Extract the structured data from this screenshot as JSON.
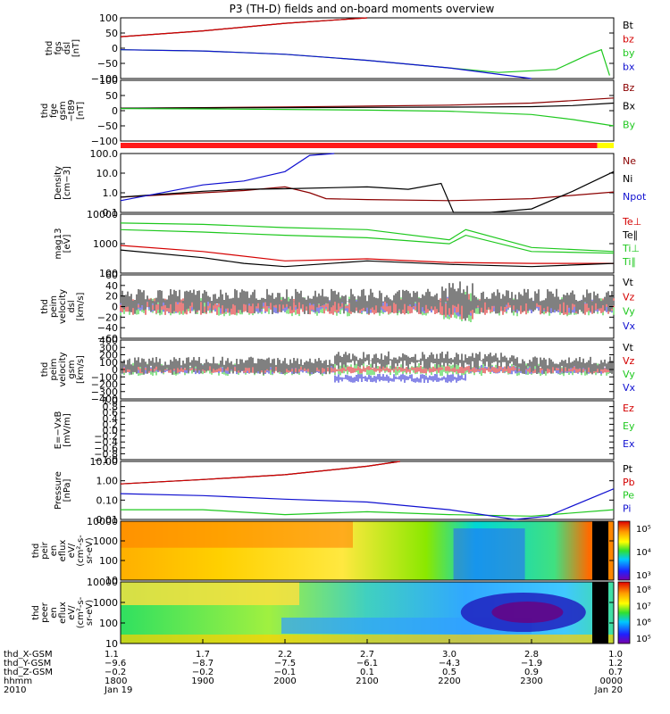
{
  "title": "P3 (TH-D) fields and on-board moments overview",
  "colors": {
    "black": "#000000",
    "red": "#d40000",
    "green": "#1ec81e",
    "blue": "#1010d0",
    "darkred": "#8b0000",
    "yellow": "#ffff00"
  },
  "panels": [
    {
      "id": "fgs-dsl",
      "ylabel": [
        "thd",
        "fgs",
        "dsl",
        "[nT]"
      ],
      "yticks": [
        "100",
        "50",
        "0",
        "−50",
        "−100"
      ],
      "legend": [
        {
          "text": "Bt",
          "color": "black"
        },
        {
          "text": "bz",
          "color": "red"
        },
        {
          "text": "by",
          "color": "green"
        },
        {
          "text": "bx",
          "color": "blue"
        }
      ]
    },
    {
      "id": "fge-gsm",
      "ylabel": [
        "thd",
        "fge",
        "gsm",
        "−t89",
        "[nT]"
      ],
      "yticks": [
        "100",
        "50",
        "0",
        "−50",
        "−100"
      ],
      "legend": [
        {
          "text": "Bz",
          "color": "darkred"
        },
        {
          "text": "Bx",
          "color": "black"
        },
        {
          "text": "By",
          "color": "green"
        }
      ]
    },
    {
      "id": "density",
      "ylabel": [
        "Density",
        "[cm−3]"
      ],
      "yticks": [
        "100.0",
        "10.0",
        "1.0",
        "0.1"
      ],
      "legend": [
        {
          "text": "Ne",
          "color": "darkred"
        },
        {
          "text": "Ni",
          "color": "black"
        },
        {
          "text": "Npot",
          "color": "blue"
        }
      ]
    },
    {
      "id": "temperature",
      "ylabel": [
        "mag13",
        "[eV]"
      ],
      "yticks": [
        "10000",
        "1000",
        "100"
      ],
      "legend": [
        {
          "text": "Te⊥",
          "color": "red"
        },
        {
          "text": "Te∥",
          "color": "black"
        },
        {
          "text": "Ti⊥",
          "color": "green"
        },
        {
          "text": "Ti∥",
          "color": "green"
        }
      ]
    },
    {
      "id": "peim-velocity-dsl",
      "ylabel": [
        "thd",
        "peim",
        "velocity",
        "dsl",
        "[km/s]"
      ],
      "yticks": [
        "60",
        "40",
        "20",
        "0",
        "−20",
        "−40",
        "−60"
      ],
      "legend": [
        {
          "text": "Vt",
          "color": "black"
        },
        {
          "text": "Vz",
          "color": "red"
        },
        {
          "text": "Vy",
          "color": "green"
        },
        {
          "text": "Vx",
          "color": "blue"
        }
      ]
    },
    {
      "id": "peim-velocity-gsm",
      "ylabel": [
        "thd",
        "peim",
        "velocity",
        "gsm",
        "[km/s]"
      ],
      "yticks": [
        "400",
        "300",
        "200",
        "100",
        "0",
        "−100",
        "−200",
        "−300",
        "−400"
      ],
      "legend": [
        {
          "text": "Vt",
          "color": "black"
        },
        {
          "text": "Vz",
          "color": "red"
        },
        {
          "text": "Vy",
          "color": "green"
        },
        {
          "text": "Vx",
          "color": "blue"
        }
      ]
    },
    {
      "id": "efield",
      "ylabel": [
        "E=−VxB",
        "[mV/m]"
      ],
      "yticks": [
        "1.0",
        "0.8",
        "0.6",
        "0.4",
        "0.2",
        "0.0",
        "−0.2",
        "−0.4",
        "−0.6",
        "−0.8",
        "−1.0"
      ],
      "legend": [
        {
          "text": "Ez",
          "color": "red"
        },
        {
          "text": "Ey",
          "color": "green"
        },
        {
          "text": "Ex",
          "color": "blue"
        }
      ]
    },
    {
      "id": "pressure",
      "ylabel": [
        "Pressure",
        "[nPa]"
      ],
      "yticks": [
        "10.00",
        "1.00",
        "0.10",
        "0.01"
      ],
      "legend": [
        {
          "text": "Pt",
          "color": "black"
        },
        {
          "text": "Pb",
          "color": "red"
        },
        {
          "text": "Pe",
          "color": "green"
        },
        {
          "text": "Pi",
          "color": "blue"
        }
      ]
    },
    {
      "id": "peir-eflux",
      "ylabel": [
        "thd",
        "peir",
        "en",
        "eflux",
        "eV/",
        "(cm²-s-",
        "sr-eV)"
      ],
      "yticks": [
        "10000",
        "1000",
        "100",
        "10"
      ],
      "colorbar": [
        "10⁵",
        "10⁴",
        "10³"
      ]
    },
    {
      "id": "peer-eflux",
      "ylabel": [
        "thd",
        "peer",
        "en",
        "eflux",
        "eV/",
        "(cm²-s-",
        "sr-eV)"
      ],
      "yticks": [
        "10000",
        "1000",
        "100",
        "10"
      ],
      "colorbar": [
        "10⁸",
        "10⁷",
        "10⁶",
        "10⁵"
      ]
    }
  ],
  "xaxis": {
    "rows": [
      {
        "label": "thd_X-GSM",
        "values": [
          "1.1",
          "1.7",
          "2.2",
          "2.7",
          "3.0",
          "2.8",
          "1.0"
        ]
      },
      {
        "label": "thd_Y-GSM",
        "values": [
          "−9.6",
          "−8.7",
          "−7.5",
          "−6.1",
          "−4.3",
          "−1.9",
          "1.2"
        ]
      },
      {
        "label": "thd_Z-GSM",
        "values": [
          "−0.2",
          "−0.2",
          "−0.1",
          "0.1",
          "0.5",
          "0.9",
          "0.7"
        ]
      },
      {
        "label": "hhmm",
        "values": [
          "1800",
          "1900",
          "2000",
          "2100",
          "2200",
          "2300",
          "0000"
        ]
      },
      {
        "label": "2010",
        "values": [
          "Jan 19",
          "",
          "",
          "",
          "",
          "",
          "Jan 20"
        ]
      }
    ]
  },
  "chart_data": {
    "type": "line",
    "title": "P3 (TH-D) fields and on-board moments overview",
    "x": [
      "1800",
      "1900",
      "2000",
      "2100",
      "2200",
      "2300",
      "0000"
    ],
    "xlabel": "hhmm",
    "panels": [
      {
        "name": "thd fgs dsl [nT]",
        "ylim": [
          -100,
          100
        ],
        "series": [
          {
            "name": "Bt",
            "points": [
              [
                0,
                38
              ],
              [
                1,
                57
              ],
              [
                2,
                82
              ],
              [
                3,
                110
              ]
            ]
          },
          {
            "name": "bz",
            "points": [
              [
                0,
                38
              ],
              [
                1,
                57
              ],
              [
                2,
                82
              ],
              [
                3,
                110
              ]
            ]
          },
          {
            "name": "by",
            "points": [
              [
                0,
                -5
              ],
              [
                1,
                -9
              ],
              [
                2,
                -20
              ],
              [
                3,
                -40
              ],
              [
                4,
                -65
              ],
              [
                4.6,
                -80
              ],
              [
                5.3,
                -70
              ],
              [
                5.7,
                -20
              ],
              [
                5.85,
                -5
              ],
              [
                5.95,
                -90
              ]
            ]
          },
          {
            "name": "bx",
            "points": [
              [
                0,
                -5
              ],
              [
                1,
                -9
              ],
              [
                2,
                -20
              ],
              [
                3,
                -40
              ],
              [
                4,
                -65
              ],
              [
                5,
                -105
              ]
            ]
          }
        ]
      },
      {
        "name": "thd fge gsm-t89 [nT]",
        "ylim": [
          -130,
          110
        ],
        "series": [
          {
            "name": "Bz",
            "points": [
              [
                0,
                0
              ],
              [
                1,
                2
              ],
              [
                2,
                5
              ],
              [
                3,
                8
              ],
              [
                4,
                12
              ],
              [
                5,
                20
              ],
              [
                5.5,
                30
              ],
              [
                6,
                40
              ]
            ]
          },
          {
            "name": "Bx",
            "points": [
              [
                0,
                0
              ],
              [
                1,
                1
              ],
              [
                2,
                2
              ],
              [
                3,
                3
              ],
              [
                4,
                4
              ],
              [
                5,
                6
              ],
              [
                5.5,
                10
              ],
              [
                6,
                20
              ]
            ]
          },
          {
            "name": "By",
            "points": [
              [
                0,
                -2
              ],
              [
                1,
                -3
              ],
              [
                2,
                -5
              ],
              [
                3,
                -8
              ],
              [
                4,
                -12
              ],
              [
                5,
                -25
              ],
              [
                5.5,
                -45
              ],
              [
                6,
                -70
              ]
            ]
          }
        ]
      },
      {
        "name": "Density [cm-3]",
        "ylim": [
          0.1,
          100
        ],
        "scale": "log",
        "series": [
          {
            "name": "Ne",
            "points": [
              [
                0,
                0.6
              ],
              [
                1,
                1.0
              ],
              [
                1.5,
                1.3
              ],
              [
                2,
                2.0
              ],
              [
                2.3,
                1.0
              ],
              [
                2.5,
                0.5
              ],
              [
                3,
                0.45
              ],
              [
                4,
                0.4
              ],
              [
                5,
                0.5
              ],
              [
                6,
                1.1
              ]
            ]
          },
          {
            "name": "Ni",
            "points": [
              [
                0,
                0.6
              ],
              [
                1,
                1.2
              ],
              [
                1.5,
                1.5
              ],
              [
                2,
                1.6
              ],
              [
                3,
                2.0
              ],
              [
                3.5,
                1.5
              ],
              [
                3.9,
                3.0
              ],
              [
                4.05,
                0.1
              ],
              [
                4.5,
                0.08
              ],
              [
                5,
                0.15
              ],
              [
                5.5,
                1.2
              ],
              [
                6,
                12
              ]
            ]
          },
          {
            "name": "Npot",
            "points": [
              [
                0,
                0.4
              ],
              [
                1,
                2.5
              ],
              [
                1.5,
                4.0
              ],
              [
                2,
                12
              ],
              [
                2.3,
                80
              ],
              [
                2.6,
                150
              ]
            ]
          }
        ]
      },
      {
        "name": "mag13 [eV]",
        "ylim": [
          50,
          10000
        ],
        "scale": "log",
        "series": [
          {
            "name": "Te⊥",
            "points": [
              [
                0,
                600
              ],
              [
                1,
                350
              ],
              [
                2,
                150
              ],
              [
                3,
                180
              ],
              [
                4,
                130
              ],
              [
                5,
                120
              ],
              [
                6,
                120
              ]
            ]
          },
          {
            "name": "Te∥",
            "points": [
              [
                0,
                400
              ],
              [
                1,
                200
              ],
              [
                1.5,
                120
              ],
              [
                2,
                90
              ],
              [
                3,
                150
              ],
              [
                4,
                110
              ],
              [
                5,
                90
              ],
              [
                6,
                120
              ]
            ]
          },
          {
            "name": "Ti⊥",
            "points": [
              [
                0,
                4500
              ],
              [
                1,
                4000
              ],
              [
                2,
                3000
              ],
              [
                3,
                2500
              ],
              [
                4,
                1000
              ],
              [
                4.2,
                2500
              ],
              [
                5,
                500
              ],
              [
                6,
                350
              ]
            ]
          },
          {
            "name": "Ti∥",
            "points": [
              [
                0,
                2500
              ],
              [
                1,
                2000
              ],
              [
                2,
                1500
              ],
              [
                3,
                1200
              ],
              [
                4,
                700
              ],
              [
                4.2,
                1500
              ],
              [
                5,
                350
              ],
              [
                6,
                300
              ]
            ]
          }
        ]
      },
      {
        "name": "thd peim velocity dsl [km/s]",
        "ylim": [
          -60,
          60
        ]
      },
      {
        "name": "thd peim velocity gsm [km/s]",
        "ylim": [
          -400,
          400
        ]
      },
      {
        "name": "E=-VxB [mV/m]",
        "ylim": [
          -1,
          1
        ]
      },
      {
        "name": "Pressure [nPa]",
        "ylim": [
          0.005,
          20
        ],
        "scale": "log",
        "series": [
          {
            "name": "Pt",
            "points": [
              [
                0,
                0.8
              ],
              [
                1,
                1.5
              ],
              [
                2,
                3.0
              ],
              [
                3,
                10
              ],
              [
                3.4,
                25
              ]
            ]
          },
          {
            "name": "Pb",
            "points": [
              [
                0,
                0.8
              ],
              [
                1,
                1.5
              ],
              [
                2,
                3.0
              ],
              [
                3,
                10
              ],
              [
                3.4,
                25
              ]
            ]
          },
          {
            "name": "Pe",
            "points": [
              [
                0,
                0.02
              ],
              [
                1,
                0.02
              ],
              [
                2,
                0.01
              ],
              [
                3,
                0.015
              ],
              [
                4,
                0.01
              ],
              [
                5,
                0.008
              ],
              [
                6,
                0.02
              ]
            ]
          },
          {
            "name": "Pi",
            "points": [
              [
                0,
                0.2
              ],
              [
                1,
                0.15
              ],
              [
                2,
                0.09
              ],
              [
                3,
                0.06
              ],
              [
                4,
                0.02
              ],
              [
                4.8,
                0.004
              ],
              [
                5.2,
                0.008
              ],
              [
                6,
                0.4
              ]
            ]
          }
        ]
      },
      {
        "name": "thd peir en eflux eV/(cm2-s-sr-eV)",
        "ylim": [
          10,
          20000
        ],
        "type": "heatmap"
      },
      {
        "name": "thd peer en eflux eV/(cm2-s-sr-eV)",
        "ylim": [
          10,
          20000
        ],
        "type": "heatmap"
      }
    ]
  }
}
